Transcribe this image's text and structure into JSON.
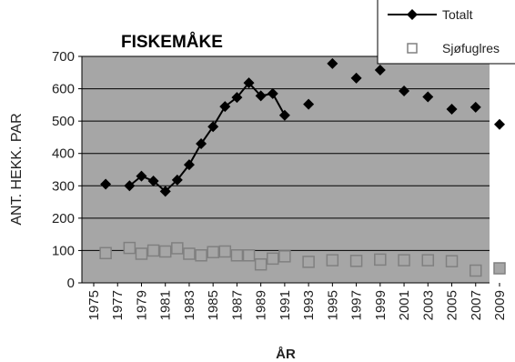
{
  "chart_data": {
    "type": "line",
    "title": "FISKEMÅKE",
    "xlabel": "ÅR",
    "ylabel": "ANT. HEKK. PAR",
    "xlim": [
      1975,
      2009
    ],
    "ylim": [
      0,
      700
    ],
    "y_ticks": [
      "0",
      "100",
      "200",
      "300",
      "400",
      "500",
      "600",
      "700"
    ],
    "x_ticks": [
      "1975",
      "1977",
      "1979",
      "1981",
      "1983",
      "1985",
      "1987",
      "1989",
      "1991",
      "1993",
      "1995",
      "1997",
      "1999",
      "2001",
      "2003",
      "2005",
      "2007",
      "2009"
    ],
    "legend_placement": "top-right",
    "plot_background": "#a6a6a6",
    "series": [
      {
        "name": "Totalt",
        "marker": "diamond",
        "color": "#000000",
        "line_segment_years": [
          1978,
          1991
        ],
        "points": [
          {
            "x": 1976,
            "y": 305
          },
          {
            "x": 1978,
            "y": 300
          },
          {
            "x": 1979,
            "y": 330
          },
          {
            "x": 1980,
            "y": 315
          },
          {
            "x": 1981,
            "y": 283
          },
          {
            "x": 1982,
            "y": 318
          },
          {
            "x": 1983,
            "y": 365
          },
          {
            "x": 1984,
            "y": 430
          },
          {
            "x": 1985,
            "y": 483
          },
          {
            "x": 1986,
            "y": 545
          },
          {
            "x": 1987,
            "y": 573
          },
          {
            "x": 1988,
            "y": 618
          },
          {
            "x": 1989,
            "y": 578
          },
          {
            "x": 1990,
            "y": 585
          },
          {
            "x": 1991,
            "y": 518
          },
          {
            "x": 1993,
            "y": 552
          },
          {
            "x": 1995,
            "y": 678
          },
          {
            "x": 1997,
            "y": 633
          },
          {
            "x": 1999,
            "y": 658
          },
          {
            "x": 2001,
            "y": 593
          },
          {
            "x": 2003,
            "y": 575
          },
          {
            "x": 2005,
            "y": 537
          },
          {
            "x": 2007,
            "y": 543
          },
          {
            "x": 2009,
            "y": 490
          }
        ]
      },
      {
        "name": "Sjøfuglres",
        "marker": "square-open",
        "color": "#808080",
        "points": [
          {
            "x": 1976,
            "y": 92
          },
          {
            "x": 1978,
            "y": 108
          },
          {
            "x": 1979,
            "y": 90
          },
          {
            "x": 1980,
            "y": 100
          },
          {
            "x": 1981,
            "y": 97
          },
          {
            "x": 1982,
            "y": 107
          },
          {
            "x": 1983,
            "y": 90
          },
          {
            "x": 1984,
            "y": 85
          },
          {
            "x": 1985,
            "y": 95
          },
          {
            "x": 1986,
            "y": 97
          },
          {
            "x": 1987,
            "y": 85
          },
          {
            "x": 1988,
            "y": 85
          },
          {
            "x": 1989,
            "y": 57
          },
          {
            "x": 1990,
            "y": 75
          },
          {
            "x": 1991,
            "y": 82
          },
          {
            "x": 1993,
            "y": 65
          },
          {
            "x": 1995,
            "y": 70
          },
          {
            "x": 1997,
            "y": 68
          },
          {
            "x": 1999,
            "y": 72
          },
          {
            "x": 2001,
            "y": 70
          },
          {
            "x": 2003,
            "y": 70
          },
          {
            "x": 2005,
            "y": 67
          },
          {
            "x": 2007,
            "y": 38
          },
          {
            "x": 2009,
            "y": 45
          }
        ]
      }
    ]
  }
}
